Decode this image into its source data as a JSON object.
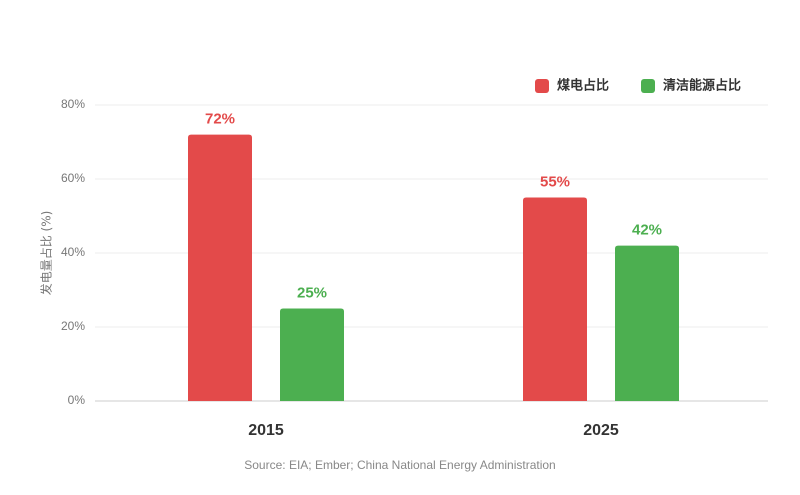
{
  "chart_data": {
    "type": "bar",
    "categories": [
      "2015",
      "2025"
    ],
    "series": [
      {
        "name": "煤电占比",
        "values": [
          72,
          55
        ],
        "color": "#e34a4a",
        "labels": [
          "72%",
          "55%"
        ]
      },
      {
        "name": "清洁能源占比",
        "values": [
          25,
          42
        ],
        "color": "#4caf50",
        "labels": [
          "25%",
          "42%"
        ]
      }
    ],
    "title": "",
    "xlabel": "",
    "ylabel": "发电量占比 (%)",
    "ylim": [
      0,
      80
    ],
    "yticks": [
      0,
      20,
      40,
      60,
      80
    ],
    "ytick_labels": [
      "0%",
      "20%",
      "40%",
      "60%",
      "80%"
    ],
    "grid": true,
    "legend_position": "top-right",
    "source": "Source: EIA; Ember; China National Energy Administration"
  }
}
